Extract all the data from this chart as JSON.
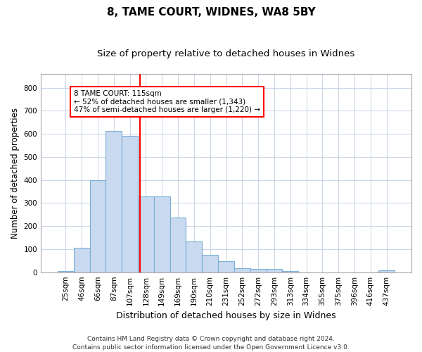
{
  "title1": "8, TAME COURT, WIDNES, WA8 5BY",
  "title2": "Size of property relative to detached houses in Widnes",
  "xlabel": "Distribution of detached houses by size in Widnes",
  "ylabel": "Number of detached properties",
  "footnote": "Contains HM Land Registry data © Crown copyright and database right 2024.\nContains public sector information licensed under the Open Government Licence v3.0.",
  "bar_labels": [
    "25sqm",
    "46sqm",
    "66sqm",
    "87sqm",
    "107sqm",
    "128sqm",
    "149sqm",
    "169sqm",
    "190sqm",
    "210sqm",
    "231sqm",
    "252sqm",
    "272sqm",
    "293sqm",
    "313sqm",
    "334sqm",
    "355sqm",
    "375sqm",
    "396sqm",
    "416sqm",
    "437sqm"
  ],
  "bar_values": [
    5,
    107,
    400,
    614,
    591,
    328,
    328,
    236,
    134,
    75,
    48,
    17,
    13,
    13,
    5,
    0,
    0,
    0,
    0,
    0,
    8
  ],
  "bar_color": "#c9d9f0",
  "bar_edge_color": "#7bafd4",
  "annotation_text": "8 TAME COURT: 115sqm\n← 52% of detached houses are smaller (1,343)\n47% of semi-detached houses are larger (1,220) →",
  "vline_x": 4.62,
  "vline_color": "red",
  "annotation_box_color": "white",
  "annotation_box_edge_color": "red",
  "ylim": [
    0,
    860
  ],
  "yticks": [
    0,
    100,
    200,
    300,
    400,
    500,
    600,
    700,
    800
  ],
  "grid_color": "#c8d4e8",
  "title1_fontsize": 11,
  "title2_fontsize": 9.5,
  "axis_label_fontsize": 8.5,
  "tick_fontsize": 7.5,
  "footnote_fontsize": 6.5
}
